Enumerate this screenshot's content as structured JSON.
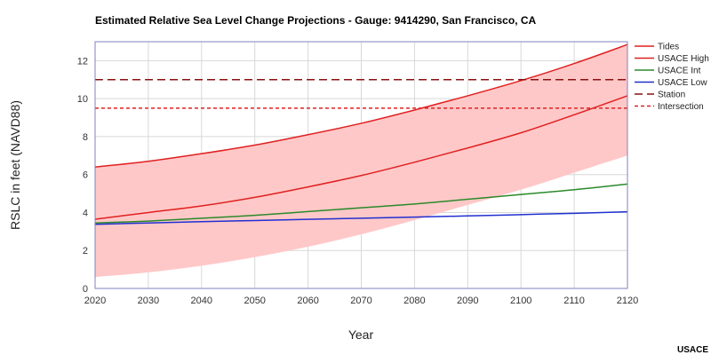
{
  "chart_data": {
    "type": "line",
    "title": "Estimated Relative Sea Level Change Projections - Gauge: 9414290, San Francisco, CA",
    "xlabel": "Year",
    "ylabel": "RSLC in feet (NAVD88)",
    "xlim": [
      2020,
      2120
    ],
    "ylim": [
      0,
      13
    ],
    "x_ticks": [
      "2020",
      "2030",
      "2040",
      "2050",
      "2060",
      "2070",
      "2080",
      "2090",
      "2100",
      "2110",
      "2120"
    ],
    "y_ticks": [
      "0",
      "2",
      "4",
      "6",
      "8",
      "10",
      "12"
    ],
    "grid": true,
    "legend_position": "right",
    "x": [
      2020,
      2030,
      2040,
      2050,
      2060,
      2070,
      2080,
      2090,
      2100,
      2110,
      2120
    ],
    "band": {
      "name": "Tides",
      "upper": [
        6.4,
        6.7,
        7.1,
        7.55,
        8.1,
        8.7,
        9.4,
        10.15,
        10.95,
        11.85,
        12.85
      ],
      "lower": [
        0.6,
        0.85,
        1.2,
        1.65,
        2.2,
        2.85,
        3.6,
        4.4,
        5.2,
        6.1,
        7.0
      ],
      "color": "#ffc8c8"
    },
    "series": [
      {
        "name": "USACE High",
        "color": "#e02020",
        "dash": "solid",
        "values": [
          3.65,
          4.0,
          4.35,
          4.8,
          5.35,
          5.95,
          6.65,
          7.4,
          8.2,
          9.15,
          10.15
        ]
      },
      {
        "name": "USACE Int",
        "color": "#2a8a2a",
        "dash": "solid",
        "values": [
          3.45,
          3.55,
          3.7,
          3.85,
          4.05,
          4.25,
          4.45,
          4.7,
          4.95,
          5.2,
          5.5
        ]
      },
      {
        "name": "USACE Low",
        "color": "#2030d0",
        "dash": "solid",
        "values": [
          3.38,
          3.45,
          3.52,
          3.58,
          3.64,
          3.7,
          3.76,
          3.82,
          3.89,
          3.96,
          4.04
        ]
      },
      {
        "name": "Station",
        "color": "#8b1010",
        "dash": "long",
        "values": [
          11.0,
          11.0,
          11.0,
          11.0,
          11.0,
          11.0,
          11.0,
          11.0,
          11.0,
          11.0,
          11.0
        ]
      },
      {
        "name": "Intersection",
        "color": "#e02020",
        "dash": "short",
        "values": [
          9.5,
          9.5,
          9.5,
          9.5,
          9.5,
          9.5,
          9.5,
          9.5,
          9.5,
          9.5,
          9.5
        ]
      }
    ],
    "legend": [
      {
        "name": "Tides",
        "color": "#e02020",
        "dash": "solid"
      },
      {
        "name": "USACE High",
        "color": "#e02020",
        "dash": "solid"
      },
      {
        "name": "USACE Int",
        "color": "#2a8a2a",
        "dash": "solid"
      },
      {
        "name": "USACE Low",
        "color": "#2030d0",
        "dash": "solid"
      },
      {
        "name": "Station",
        "color": "#8b1010",
        "dash": "long"
      },
      {
        "name": "Intersection",
        "color": "#e02020",
        "dash": "short"
      }
    ]
  },
  "credit": "USACE"
}
